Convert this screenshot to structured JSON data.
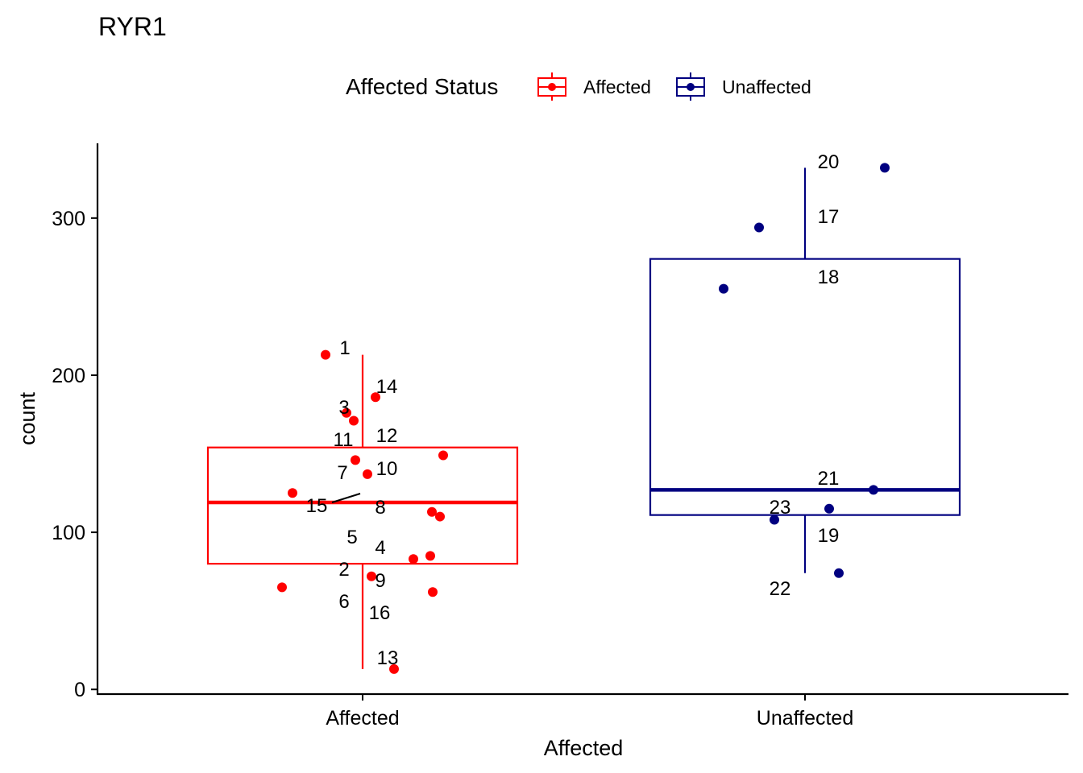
{
  "chart_data": {
    "type": "boxplot",
    "title": "RYR1",
    "xlabel": "Affected",
    "ylabel": "count",
    "ylim": [
      0,
      345
    ],
    "yticks": [
      0,
      100,
      200,
      300
    ],
    "categories": [
      "Affected",
      "Unaffected"
    ],
    "legend": {
      "title": "Affected Status",
      "placement": "top",
      "entries": [
        {
          "label": "Affected",
          "color": "#ff0000"
        },
        {
          "label": "Unaffected",
          "color": "#000080"
        }
      ]
    },
    "boxes": [
      {
        "category": "Affected",
        "color": "#ff0000",
        "min": 13,
        "q1": 80,
        "median": 119,
        "q3": 154,
        "max": 213
      },
      {
        "category": "Unaffected",
        "color": "#000080",
        "min": 74,
        "q1": 111,
        "median": 127,
        "q3": 274,
        "max": 332
      }
    ],
    "points": [
      {
        "id": "1",
        "group": "Affected",
        "y": 213
      },
      {
        "id": "2",
        "group": "Affected",
        "y": 72
      },
      {
        "id": "3",
        "group": "Affected",
        "y": 176
      },
      {
        "id": "4",
        "group": "Affected",
        "y": 85
      },
      {
        "id": "5",
        "group": "Affected",
        "y": 83
      },
      {
        "id": "6",
        "group": "Affected",
        "y": 65
      },
      {
        "id": "7",
        "group": "Affected",
        "y": 137
      },
      {
        "id": "8",
        "group": "Affected",
        "y": 113
      },
      {
        "id": "9",
        "group": "Affected",
        "y": 62
      },
      {
        "id": "10",
        "group": "Affected",
        "y": 149
      },
      {
        "id": "11",
        "group": "Affected",
        "y": 171
      },
      {
        "id": "12",
        "group": "Affected",
        "y": 146
      },
      {
        "id": "13",
        "group": "Affected",
        "y": 13
      },
      {
        "id": "14",
        "group": "Affected",
        "y": 186
      },
      {
        "id": "15",
        "group": "Affected",
        "y": 125
      },
      {
        "id": "16",
        "group": "Affected",
        "y": 110
      },
      {
        "id": "17",
        "group": "Unaffected",
        "y": 294
      },
      {
        "id": "18",
        "group": "Unaffected",
        "y": 255
      },
      {
        "id": "19",
        "group": "Unaffected",
        "y": 115
      },
      {
        "id": "20",
        "group": "Unaffected",
        "y": 332
      },
      {
        "id": "21",
        "group": "Unaffected",
        "y": 127
      },
      {
        "id": "22",
        "group": "Unaffected",
        "y": 74
      },
      {
        "id": "23",
        "group": "Unaffected",
        "y": 108
      }
    ]
  }
}
